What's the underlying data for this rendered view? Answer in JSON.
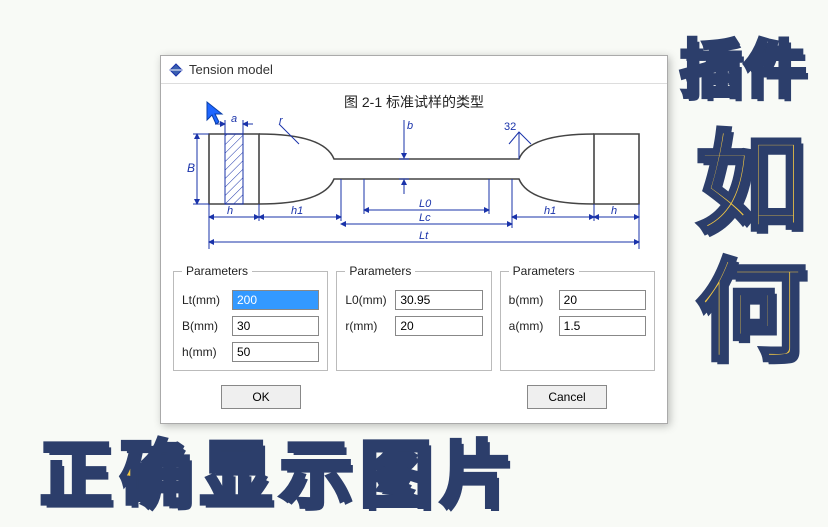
{
  "overlay": {
    "t1": "插件",
    "t2": "如",
    "t3": "何",
    "t4": "正确显示图片"
  },
  "dialog": {
    "title": "Tension model",
    "diagram_title": "图 2-1 标准试样的类型",
    "diagram": {
      "labels": {
        "a": "a",
        "r": "r",
        "B": "B",
        "h": "h",
        "h1": "h1",
        "L0": "L0",
        "Lc": "Lc",
        "Lt": "Lt",
        "surf": "32"
      },
      "stroke": "#1a33aa",
      "thin": "#1a33aa",
      "body": "#444"
    },
    "groups": [
      {
        "legend": "Parameters",
        "fields": [
          {
            "label": "Lt(mm)",
            "value": "200",
            "selected": true
          },
          {
            "label": "B(mm)",
            "value": "30"
          },
          {
            "label": "h(mm)",
            "value": "50"
          }
        ]
      },
      {
        "legend": "Parameters",
        "fields": [
          {
            "label": "L0(mm)",
            "value": "30.95"
          },
          {
            "label": "r(mm)",
            "value": "20"
          }
        ]
      },
      {
        "legend": "Parameters",
        "fields": [
          {
            "label": "b(mm)",
            "value": "20"
          },
          {
            "label": "a(mm)",
            "value": "1.5"
          }
        ]
      }
    ],
    "buttons": {
      "ok": "OK",
      "cancel": "Cancel"
    }
  }
}
